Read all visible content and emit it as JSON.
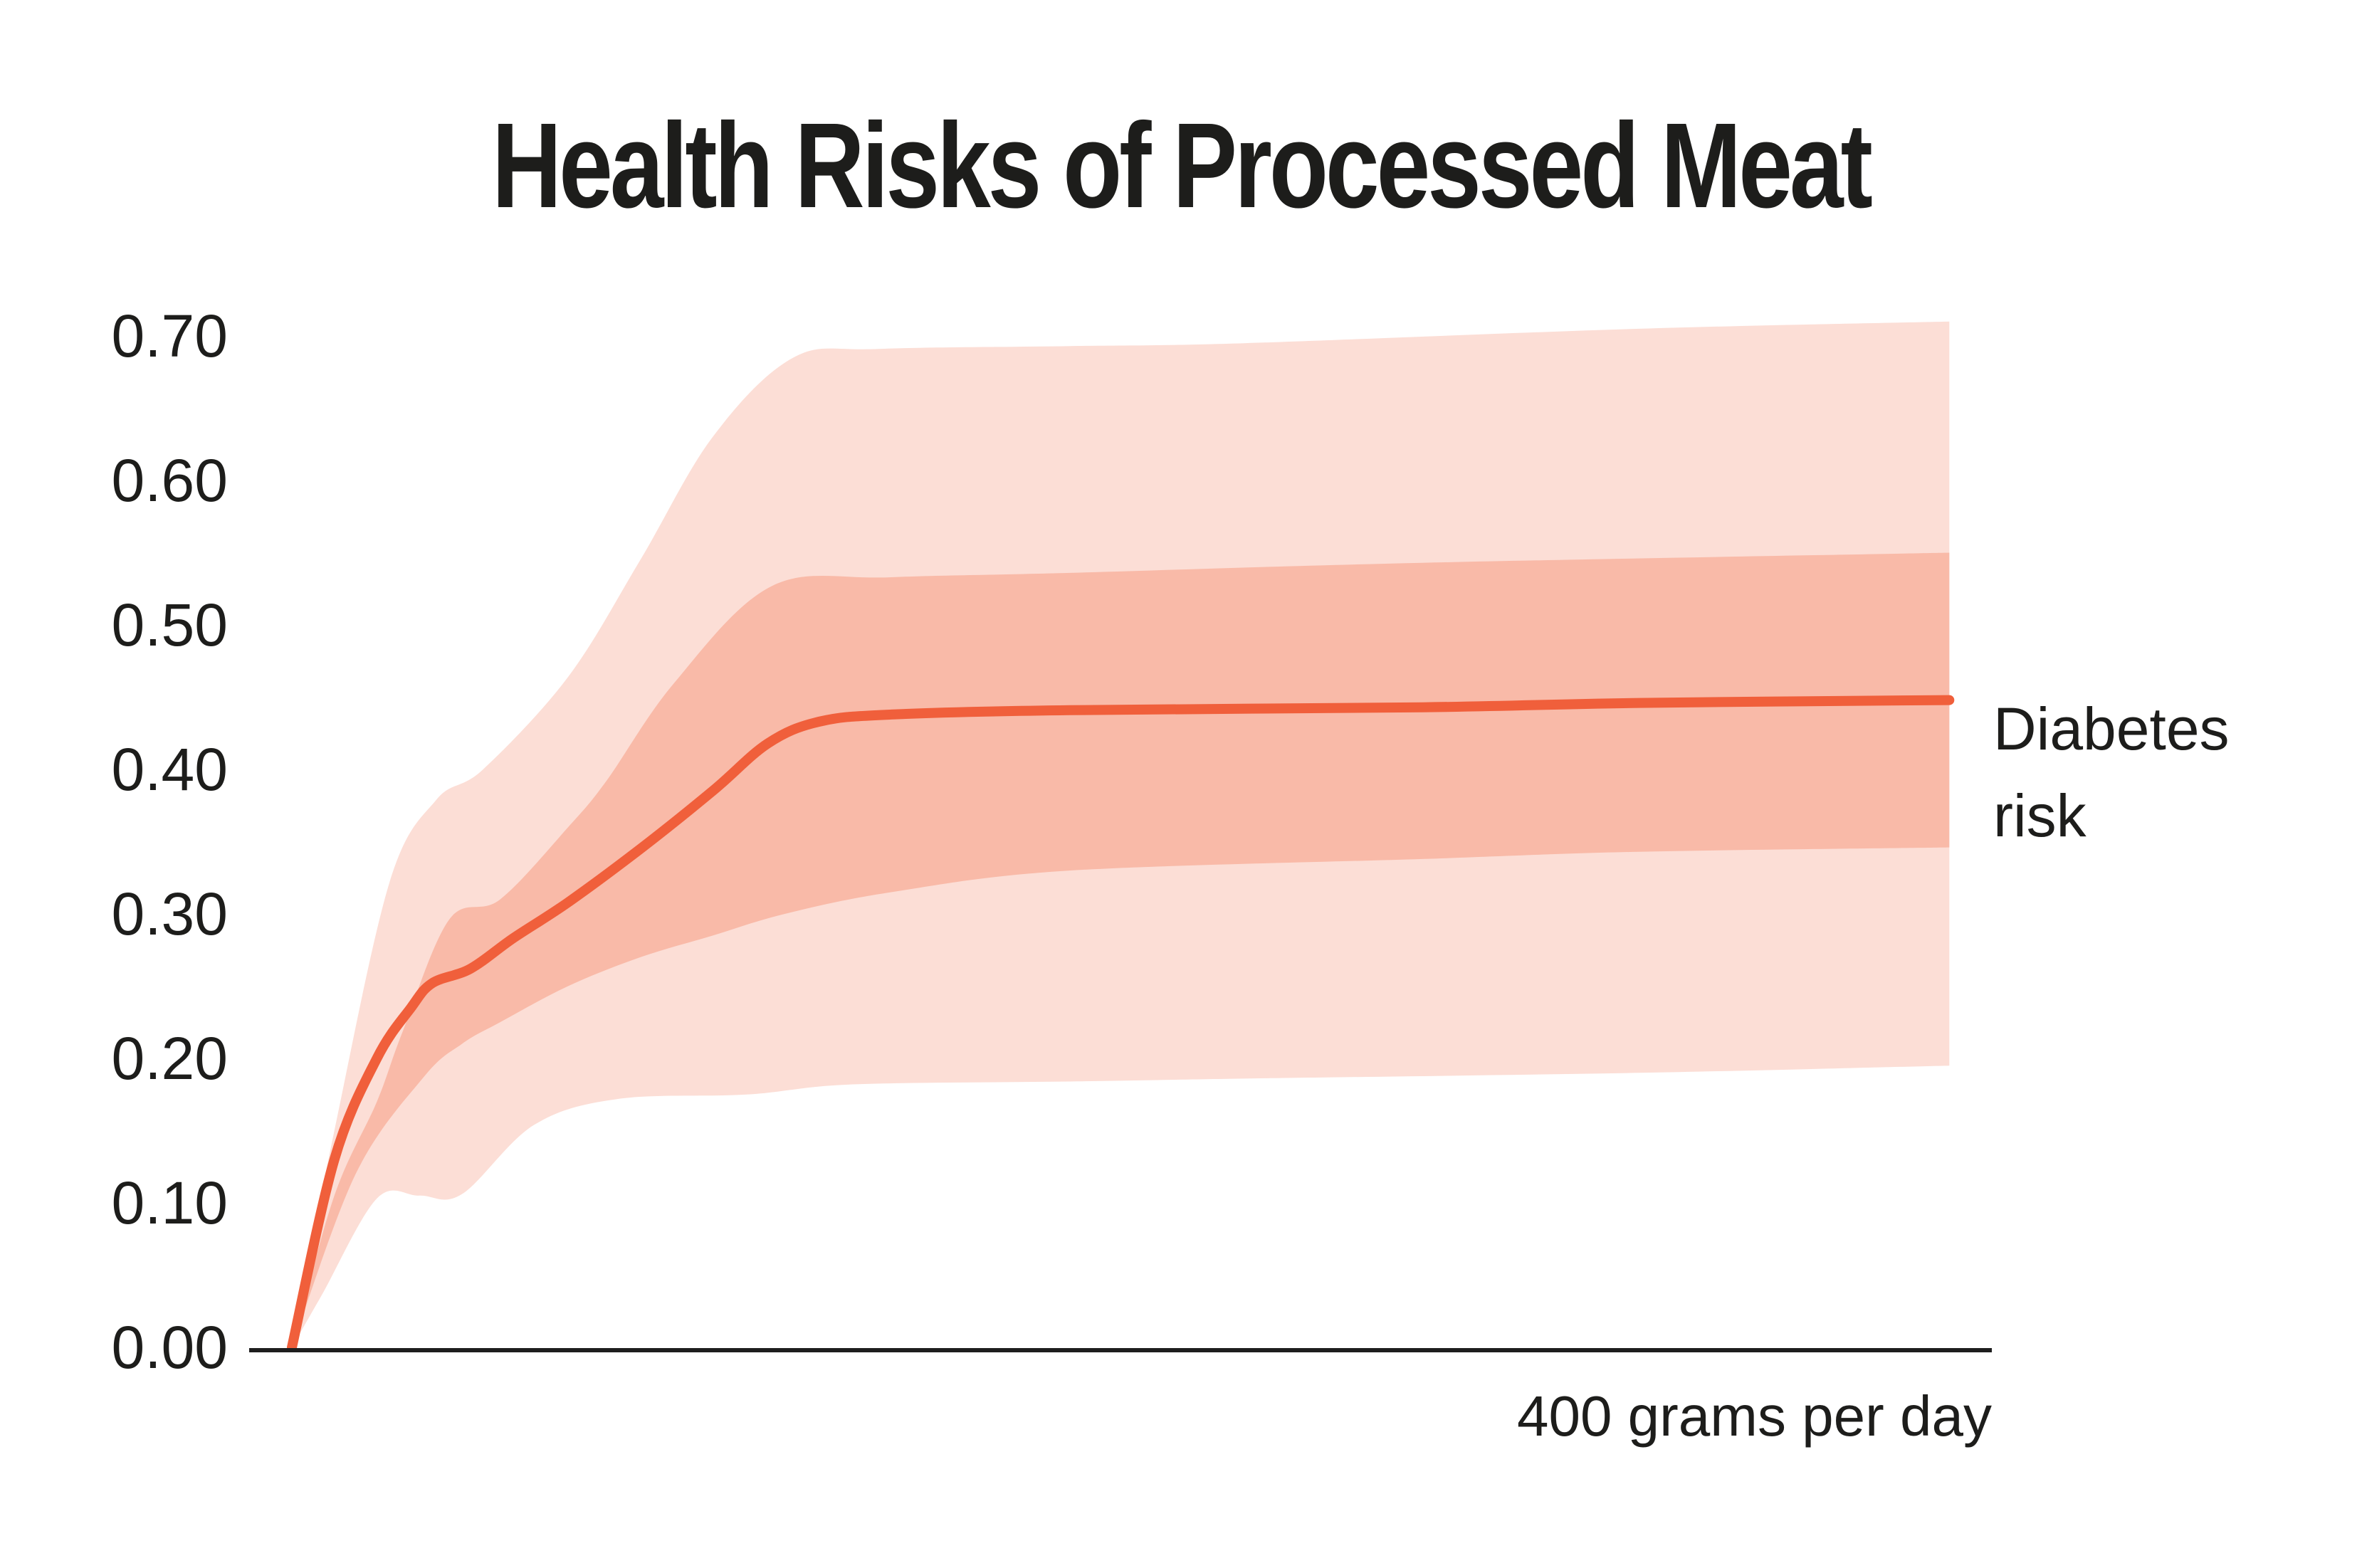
{
  "title": "Health Risks of Processed Meat",
  "x_axis_label": "400 grams per day",
  "series_label": "Diabetes risk",
  "y_axis": {
    "tick_labels": [
      "0.70",
      "0.60",
      "0.50",
      "0.40",
      "0.30",
      "0.20",
      "0.10",
      "0.00"
    ],
    "tick_values": [
      0.7,
      0.6,
      0.5,
      0.4,
      0.3,
      0.2,
      0.1,
      0.0
    ]
  },
  "colors": {
    "line": "#F05F3B",
    "band_inner": "#F9BAA8",
    "band_outer": "#FCDED6",
    "axis": "#1e1e1e",
    "text": "#1d1d1b",
    "background": "#ffffff"
  },
  "chart_data": {
    "type": "line",
    "title": "Health Risks of Processed Meat",
    "xlabel": "400 grams per day",
    "ylabel": "",
    "x_unit": "grams per day",
    "x_range": [
      0,
      400
    ],
    "ylim": [
      0.0,
      0.72
    ],
    "y_ticks": [
      0.0,
      0.1,
      0.2,
      0.3,
      0.4,
      0.5,
      0.6,
      0.7
    ],
    "grid": false,
    "legend_position": "right-of-line-end",
    "legend": [
      "Diabetes risk"
    ],
    "annotation": "median line with inner and outer uncertainty bands, fan starts at 0 and plateaus near 0.45",
    "series": [
      {
        "name": "Diabetes risk (median)",
        "role": "line",
        "x": [
          0,
          10,
          20,
          28,
          33,
          42,
          52,
          65,
          82,
          99,
          112,
          124,
          141,
          183,
          266,
          317,
          390
        ],
        "y": [
          0,
          0.13,
          0.2,
          0.235,
          0.252,
          0.262,
          0.283,
          0.308,
          0.345,
          0.385,
          0.418,
          0.433,
          0.438,
          0.441,
          0.443,
          0.446,
          0.448
        ]
      },
      {
        "name": "inner band upper",
        "role": "band_inner_top",
        "x": [
          0,
          10,
          20,
          26,
          37,
          49,
          65,
          74,
          90,
          113,
          141,
          183,
          266,
          390
        ],
        "y": [
          0,
          0.105,
          0.17,
          0.218,
          0.296,
          0.31,
          0.36,
          0.392,
          0.46,
          0.527,
          0.533,
          0.536,
          0.543,
          0.55
        ]
      },
      {
        "name": "inner band lower",
        "role": "band_inner_bottom",
        "x": [
          0,
          15,
          31,
          40,
          49,
          65,
          82,
          99,
          116,
          141,
          183,
          266,
          317,
          390
        ],
        "y": [
          0,
          0.12,
          0.187,
          0.21,
          0.225,
          0.25,
          0.27,
          0.285,
          0.3,
          0.315,
          0.33,
          0.338,
          0.343,
          0.346
        ]
      },
      {
        "name": "outer band upper",
        "role": "band_outer_top",
        "x": [
          0,
          10,
          23,
          34,
          45,
          65,
          82,
          99,
          118,
          138,
          183,
          224,
          317,
          390
        ],
        "y": [
          0,
          0.15,
          0.322,
          0.379,
          0.4,
          0.464,
          0.545,
          0.63,
          0.685,
          0.691,
          0.693,
          0.695,
          0.705,
          0.71
        ]
      },
      {
        "name": "outer band lower",
        "role": "band_outer_bottom",
        "x": [
          0,
          7,
          20,
          30,
          40,
          57,
          77,
          107,
          132,
          183,
          224,
          317,
          390
        ],
        "y": [
          0,
          0.036,
          0.103,
          0.105,
          0.106,
          0.154,
          0.172,
          0.175,
          0.182,
          0.184,
          0.186,
          0.19,
          0.195
        ]
      }
    ]
  }
}
